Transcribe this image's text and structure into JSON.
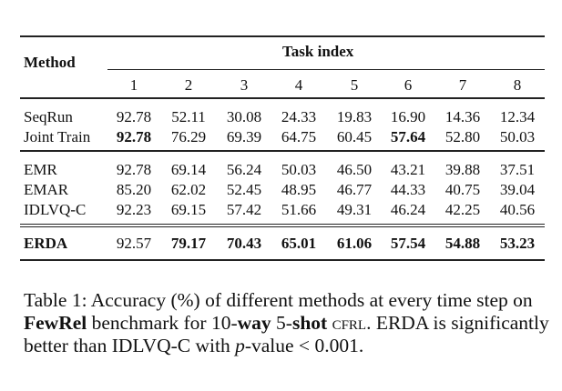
{
  "table": {
    "method_header": "Method",
    "group_header": "Task index",
    "task_indices": [
      "1",
      "2",
      "3",
      "4",
      "5",
      "6",
      "7",
      "8"
    ],
    "groups": [
      [
        {
          "method": "SeqRun",
          "method_bold": false,
          "values": [
            "92.78",
            "52.11",
            "30.08",
            "24.33",
            "19.83",
            "16.90",
            "14.36",
            "12.34"
          ],
          "bold": [
            false,
            false,
            false,
            false,
            false,
            false,
            false,
            false
          ]
        },
        {
          "method": "Joint Train",
          "method_bold": false,
          "values": [
            "92.78",
            "76.29",
            "69.39",
            "64.75",
            "60.45",
            "57.64",
            "52.80",
            "50.03"
          ],
          "bold": [
            true,
            false,
            false,
            false,
            false,
            true,
            false,
            false
          ]
        }
      ],
      [
        {
          "method": "EMR",
          "method_bold": false,
          "values": [
            "92.78",
            "69.14",
            "56.24",
            "50.03",
            "46.50",
            "43.21",
            "39.88",
            "37.51"
          ],
          "bold": [
            false,
            false,
            false,
            false,
            false,
            false,
            false,
            false
          ]
        },
        {
          "method": "EMAR",
          "method_bold": false,
          "values": [
            "85.20",
            "62.02",
            "52.45",
            "48.95",
            "46.77",
            "44.33",
            "40.75",
            "39.04"
          ],
          "bold": [
            false,
            false,
            false,
            false,
            false,
            false,
            false,
            false
          ]
        },
        {
          "method": "IDLVQ-C",
          "method_bold": false,
          "values": [
            "92.23",
            "69.15",
            "57.42",
            "51.66",
            "49.31",
            "46.24",
            "42.25",
            "40.56"
          ],
          "bold": [
            false,
            false,
            false,
            false,
            false,
            false,
            false,
            false
          ]
        }
      ],
      [
        {
          "method": "ERDA",
          "method_bold": true,
          "values": [
            "92.57",
            "79.17",
            "70.43",
            "65.01",
            "61.06",
            "57.54",
            "54.88",
            "53.23"
          ],
          "bold": [
            false,
            true,
            true,
            true,
            true,
            true,
            true,
            true
          ]
        }
      ]
    ]
  },
  "caption": {
    "p1": "Table 1:  Accuracy (%) of different methods at every time step on ",
    "p2": "FewRel",
    "p3": " benchmark for 10-",
    "p4": "way",
    "p5": " 5-",
    "p6": "shot",
    "p7": " ",
    "p8": "cfrl",
    "p9": ". ERDA is significantly better than IDLVQ-C with ",
    "p10": "p",
    "p11": "-value < 0.001."
  }
}
